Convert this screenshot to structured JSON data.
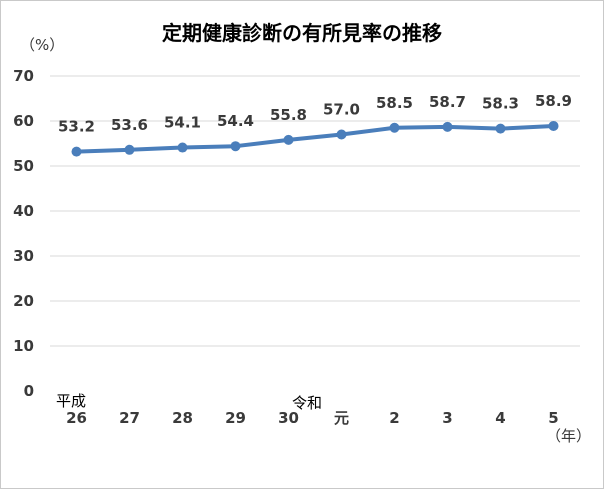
{
  "chart_data": {
    "type": "line",
    "title": "定期健康診断の有所見率の推移",
    "ylabel": "（%）",
    "xlabel": "（年）",
    "categories": [
      "26",
      "27",
      "28",
      "29",
      "30",
      "元",
      "2",
      "3",
      "4",
      "5"
    ],
    "era_labels": {
      "heisei": "平成",
      "reiwa": "令和"
    },
    "series": [
      {
        "values": [
          53.2,
          53.6,
          54.1,
          54.4,
          55.8,
          57.0,
          58.5,
          58.7,
          58.3,
          58.9
        ],
        "value_labels": [
          "53.2",
          "53.6",
          "54.1",
          "54.4",
          "55.8",
          "57.0",
          "58.5",
          "58.7",
          "58.3",
          "58.9"
        ]
      }
    ],
    "ylim": [
      0,
      70
    ],
    "yticks": [
      "0",
      "10",
      "20",
      "30",
      "40",
      "50",
      "60",
      "70"
    ],
    "grid": true,
    "legend": "none",
    "colors": {
      "line": "#4a7ebb",
      "grid": "#d9d9d9",
      "text": "#3a3a3a"
    }
  }
}
